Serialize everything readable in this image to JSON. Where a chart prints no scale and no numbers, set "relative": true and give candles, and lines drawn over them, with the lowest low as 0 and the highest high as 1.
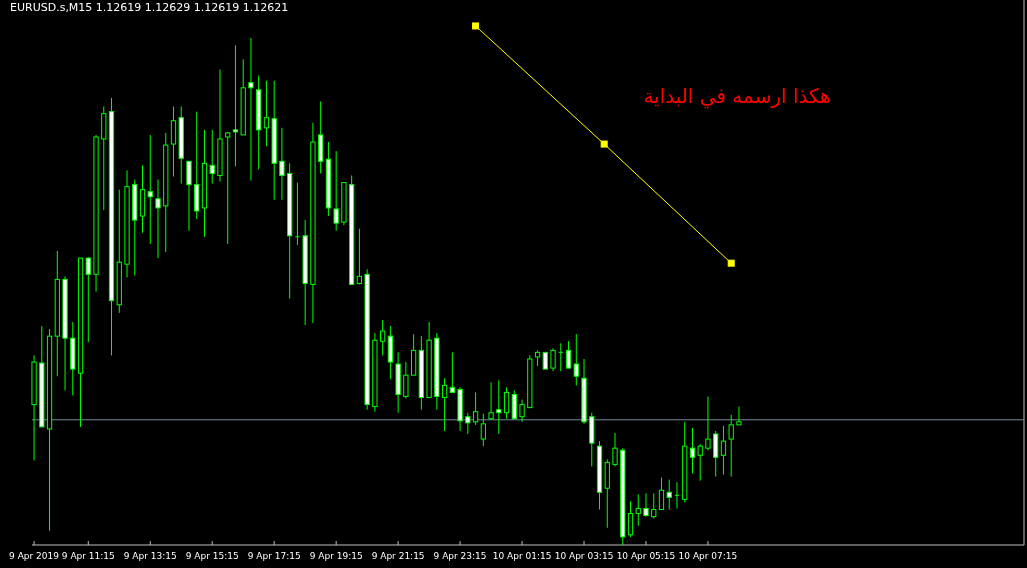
{
  "chart_data": {
    "type": "candlestick",
    "title": "EURUSD.s,M15  1.12619 1.12629 1.12619 1.12621",
    "relative": true,
    "color": "#00ff00",
    "grid": false,
    "x": [
      "2019-04-09T09:30",
      "2019-04-09T09:45",
      "2019-04-09T10:00",
      "2019-04-09T10:15",
      "2019-04-09T10:30",
      "2019-04-09T10:45",
      "2019-04-09T11:00",
      "2019-04-09T11:15",
      "2019-04-09T11:30",
      "2019-04-09T11:45",
      "2019-04-09T12:00",
      "2019-04-09T12:15",
      "2019-04-09T12:30",
      "2019-04-09T12:45",
      "2019-04-09T13:00",
      "2019-04-09T13:15",
      "2019-04-09T13:30",
      "2019-04-09T13:45",
      "2019-04-09T14:00",
      "2019-04-09T14:15",
      "2019-04-09T14:30",
      "2019-04-09T14:45",
      "2019-04-09T15:00",
      "2019-04-09T15:15",
      "2019-04-09T15:30",
      "2019-04-09T15:45",
      "2019-04-09T16:00",
      "2019-04-09T16:15",
      "2019-04-09T16:30",
      "2019-04-09T16:45",
      "2019-04-09T17:00",
      "2019-04-09T17:15",
      "2019-04-09T17:30",
      "2019-04-09T17:45",
      "2019-04-09T18:00",
      "2019-04-09T18:15",
      "2019-04-09T18:30",
      "2019-04-09T18:45",
      "2019-04-09T19:00",
      "2019-04-09T19:15",
      "2019-04-09T19:30",
      "2019-04-09T19:45",
      "2019-04-09T20:00",
      "2019-04-09T20:15",
      "2019-04-09T20:30",
      "2019-04-09T20:45",
      "2019-04-09T21:00",
      "2019-04-09T21:15",
      "2019-04-09T21:30",
      "2019-04-09T21:45",
      "2019-04-09T22:00",
      "2019-04-09T22:15",
      "2019-04-09T22:30",
      "2019-04-09T22:45",
      "2019-04-09T23:00",
      "2019-04-09T23:15",
      "2019-04-09T23:30",
      "2019-04-09T23:45",
      "2019-04-10T00:00",
      "2019-04-10T00:15",
      "2019-04-10T00:30",
      "2019-04-10T00:45",
      "2019-04-10T01:00",
      "2019-04-10T01:15",
      "2019-04-10T01:30",
      "2019-04-10T01:45",
      "2019-04-10T02:00",
      "2019-04-10T02:15",
      "2019-04-10T02:30",
      "2019-04-10T02:45",
      "2019-04-10T03:00",
      "2019-04-10T03:15",
      "2019-04-10T03:30",
      "2019-04-10T03:45",
      "2019-04-10T04:00",
      "2019-04-10T04:15",
      "2019-04-10T04:30",
      "2019-04-10T04:45",
      "2019-04-10T05:00",
      "2019-04-10T05:15",
      "2019-04-10T05:30",
      "2019-04-10T05:45",
      "2019-04-10T06:00",
      "2019-04-10T06:15",
      "2019-04-10T06:30",
      "2019-04-10T06:45",
      "2019-04-10T07:00",
      "2019-04-10T07:15",
      "2019-04-10T07:30",
      "2019-04-10T07:45",
      "2019-04-10T08:00",
      "2019-04-10T08:15"
    ],
    "ohlc": [
      [
        0.277,
        0.374,
        0.167,
        0.361
      ],
      [
        0.359,
        0.432,
        0.233,
        0.233
      ],
      [
        0.229,
        0.426,
        0.028,
        0.412
      ],
      [
        0.412,
        0.58,
        0.333,
        0.524
      ],
      [
        0.524,
        0.53,
        0.305,
        0.408
      ],
      [
        0.408,
        0.44,
        0.295,
        0.347
      ],
      [
        0.339,
        0.566,
        0.233,
        0.566
      ],
      [
        0.566,
        0.568,
        0.4,
        0.534
      ],
      [
        0.534,
        0.809,
        0.5,
        0.805
      ],
      [
        0.801,
        0.865,
        0.661,
        0.851
      ],
      [
        0.855,
        0.882,
        0.374,
        0.482
      ],
      [
        0.474,
        0.701,
        0.458,
        0.558
      ],
      [
        0.554,
        0.739,
        0.528,
        0.707
      ],
      [
        0.711,
        0.721,
        0.532,
        0.641
      ],
      [
        0.649,
        0.749,
        0.616,
        0.701
      ],
      [
        0.697,
        0.809,
        0.594,
        0.687
      ],
      [
        0.683,
        0.721,
        0.566,
        0.665
      ],
      [
        0.669,
        0.813,
        0.578,
        0.789
      ],
      [
        0.791,
        0.865,
        0.727,
        0.837
      ],
      [
        0.843,
        0.865,
        0.713,
        0.763
      ],
      [
        0.757,
        0.757,
        0.62,
        0.711
      ],
      [
        0.711,
        0.855,
        0.643,
        0.659
      ],
      [
        0.665,
        0.819,
        0.608,
        0.753
      ],
      [
        0.749,
        0.819,
        0.713,
        0.733
      ],
      [
        0.729,
        0.938,
        0.717,
        0.801
      ],
      [
        0.805,
        0.815,
        0.594,
        0.813
      ],
      [
        0.819,
        0.986,
        0.747,
        0.815
      ],
      [
        0.809,
        0.958,
        0.809,
        0.902
      ],
      [
        0.912,
        1,
        0.719,
        0.902
      ],
      [
        0.898,
        0.926,
        0.741,
        0.819
      ],
      [
        0.823,
        0.916,
        0.787,
        0.843
      ],
      [
        0.841,
        0.916,
        0.681,
        0.753
      ],
      [
        0.757,
        0.823,
        0.681,
        0.729
      ],
      [
        0.733,
        0.753,
        0.486,
        0.61
      ],
      [
        0.608,
        0.715,
        0.592,
        0.608
      ],
      [
        0.61,
        0.641,
        0.434,
        0.516
      ],
      [
        0.514,
        0.833,
        0.438,
        0.795
      ],
      [
        0.809,
        0.875,
        0.733,
        0.757
      ],
      [
        0.761,
        0.795,
        0.649,
        0.665
      ],
      [
        0.663,
        0.777,
        0.62,
        0.635
      ],
      [
        0.637,
        0.715,
        0.631,
        0.715
      ],
      [
        0.711,
        0.729,
        0.514,
        0.514
      ],
      [
        0.516,
        0.624,
        0.514,
        0.53
      ],
      [
        0.534,
        0.544,
        0.267,
        0.277
      ],
      [
        0.273,
        0.418,
        0.263,
        0.404
      ],
      [
        0.402,
        0.444,
        0.374,
        0.422
      ],
      [
        0.412,
        0.432,
        0.327,
        0.361
      ],
      [
        0.357,
        0.38,
        0.261,
        0.297
      ],
      [
        0.293,
        0.361,
        0.289,
        0.335
      ],
      [
        0.335,
        0.416,
        0.335,
        0.384
      ],
      [
        0.384,
        0.412,
        0.267,
        0.291
      ],
      [
        0.291,
        0.44,
        0.291,
        0.404
      ],
      [
        0.408,
        0.418,
        0.267,
        0.293
      ],
      [
        0.291,
        0.329,
        0.225,
        0.315
      ],
      [
        0.311,
        0.38,
        0.301,
        0.301
      ],
      [
        0.307,
        0.311,
        0.225,
        0.245
      ],
      [
        0.253,
        0.261,
        0.219,
        0.241
      ],
      [
        0.243,
        0.301,
        0.237,
        0.263
      ],
      [
        0.209,
        0.259,
        0.195,
        0.239
      ],
      [
        0.249,
        0.321,
        0.247,
        0.261
      ],
      [
        0.267,
        0.325,
        0.219,
        0.261
      ],
      [
        0.261,
        0.311,
        0.249,
        0.301
      ],
      [
        0.297,
        0.305,
        0.249,
        0.249
      ],
      [
        0.253,
        0.287,
        0.243,
        0.277
      ],
      [
        0.271,
        0.374,
        0.271,
        0.367
      ],
      [
        0.371,
        0.384,
        0.353,
        0.38
      ],
      [
        0.38,
        0.38,
        0.347,
        0.347
      ],
      [
        0.349,
        0.388,
        0.343,
        0.384
      ],
      [
        0.38,
        0.398,
        0.343,
        0.38
      ],
      [
        0.384,
        0.402,
        0.349,
        0.349
      ],
      [
        0.357,
        0.416,
        0.315,
        0.333
      ],
      [
        0.329,
        0.367,
        0.239,
        0.243
      ],
      [
        0.253,
        0.261,
        0.155,
        0.201
      ],
      [
        0.195,
        0.205,
        0.07,
        0.104
      ],
      [
        0.112,
        0.169,
        0.034,
        0.163
      ],
      [
        0.159,
        0.221,
        0.155,
        0.191
      ],
      [
        0.187,
        0.191,
        0,
        0.016
      ],
      [
        0.02,
        0.086,
        0.016,
        0.062
      ],
      [
        0.062,
        0.1,
        0.038,
        0.072
      ],
      [
        0.072,
        0.102,
        0.056,
        0.058
      ],
      [
        0.056,
        0.102,
        0.052,
        0.07
      ],
      [
        0.07,
        0.133,
        0.07,
        0.108
      ],
      [
        0.104,
        0.129,
        0.07,
        0.094
      ],
      [
        0.098,
        0.124,
        0.072,
        0.098
      ],
      [
        0.09,
        0.243,
        0.084,
        0.195
      ],
      [
        0.191,
        0.231,
        0.141,
        0.173
      ],
      [
        0.177,
        0.199,
        0.127,
        0.195
      ],
      [
        0.191,
        0.293,
        0.187,
        0.209
      ],
      [
        0.219,
        0.225,
        0.135,
        0.173
      ],
      [
        0.177,
        0.235,
        0.139,
        0.205
      ],
      [
        0.209,
        0.257,
        0.135,
        0.237
      ],
      [
        0.237,
        0.273,
        0.237,
        0.243
      ]
    ],
    "series": [
      {
        "type": "line",
        "x": [
          "2019-04-09T23:45",
          "2019-04-10T03:54",
          "2019-04-10T08:00"
        ],
        "values": [
          1.024,
          0.791,
          0.556
        ],
        "color": "#ffff00",
        "marker": "square",
        "line_style": "solid"
      }
    ],
    "ref_lines": [
      {
        "axis": "y",
        "value": 0.247,
        "color": "#778899"
      }
    ],
    "xlim": [
      "2019-04-09T09:26",
      "2019-04-10T17:27"
    ],
    "xticks": [
      {
        "value": "2019-04-09T09:30",
        "label": "9 Apr 2019"
      },
      {
        "value": "2019-04-09T11:15",
        "label": "9 Apr 11:15"
      },
      {
        "value": "2019-04-09T13:15",
        "label": "9 Apr 13:15"
      },
      {
        "value": "2019-04-09T15:15",
        "label": "9 Apr 15:15"
      },
      {
        "value": "2019-04-09T17:15",
        "label": "9 Apr 17:15"
      },
      {
        "value": "2019-04-09T19:15",
        "label": "9 Apr 19:15"
      },
      {
        "value": "2019-04-09T21:15",
        "label": "9 Apr 21:15"
      },
      {
        "value": "2019-04-09T23:15",
        "label": "9 Apr 23:15"
      },
      {
        "value": "2019-04-10T01:15",
        "label": "10 Apr 01:15"
      },
      {
        "value": "2019-04-10T03:15",
        "label": "10 Apr 03:15"
      },
      {
        "value": "2019-04-10T05:15",
        "label": "10 Apr 05:15"
      },
      {
        "value": "2019-04-10T07:15",
        "label": "10 Apr 07:15"
      }
    ],
    "annotations": [
      "هكذا ارسمه في البداية"
    ]
  }
}
